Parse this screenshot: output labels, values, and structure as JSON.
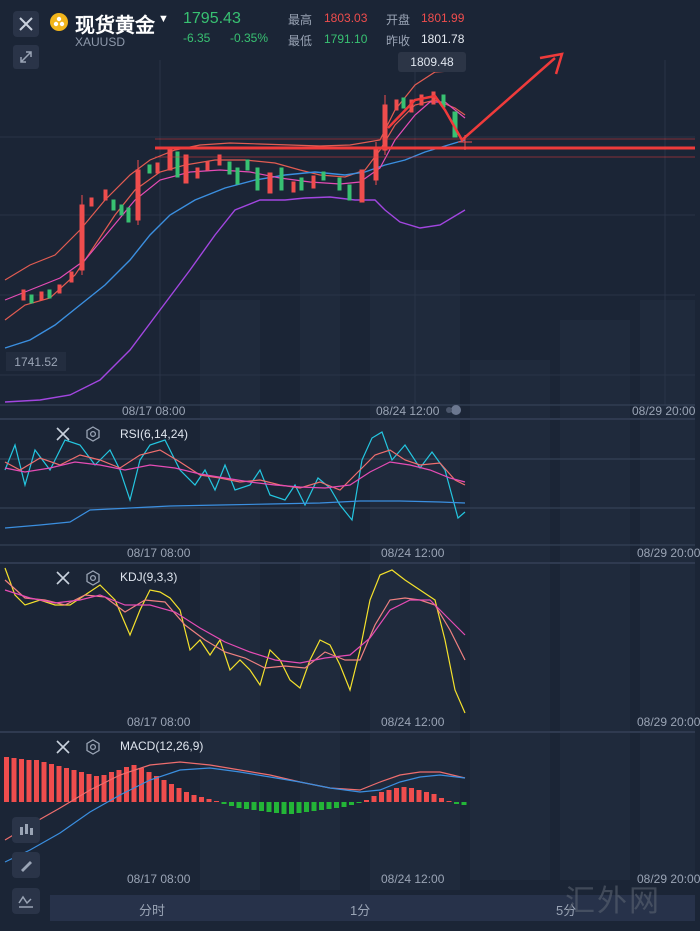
{
  "header": {
    "title": "现货黄金",
    "symbol": "XAUUSD",
    "price": "1795.43",
    "change": "-6.35",
    "change_pct": "-0.35%",
    "high_label": "最高",
    "high": "1803.03",
    "open_label": "开盘",
    "open": "1801.99",
    "low_label": "最低",
    "low": "1791.10",
    "prev_close_label": "昨收",
    "prev_close": "1801.78",
    "colors": {
      "up": "#ef4d4d",
      "down": "#38c172",
      "logo": "#f2b51b"
    }
  },
  "main_chart": {
    "price_tag": "1809.48",
    "low_tag": "1741.52",
    "time_labels": [
      "08/17 08:00",
      "08/24 12:00",
      "08/29 20:00"
    ]
  },
  "indicators": [
    {
      "title": "RSI(6,14,24)",
      "time_labels": [
        "08/17 08:00",
        "08/24 12:00",
        "08/29 20:00"
      ]
    },
    {
      "title": "KDJ(9,3,3)",
      "time_labels": [
        "08/17 08:00",
        "08/24 12:00",
        "08/29 20:00"
      ]
    },
    {
      "title": "MACD(12,26,9)",
      "time_labels": [
        "08/17 08:00",
        "08/24 12:00",
        "08/29 20:00"
      ]
    }
  ],
  "tabs": [
    "分时",
    "1分",
    "5分"
  ],
  "watermark": "汇外网",
  "icons": [
    "close-icon",
    "gold-logo-icon",
    "expand-icon",
    "settings-icon",
    "candlestick-tool-icon",
    "pen-tool-icon",
    "indicator-tool-icon"
  ]
}
